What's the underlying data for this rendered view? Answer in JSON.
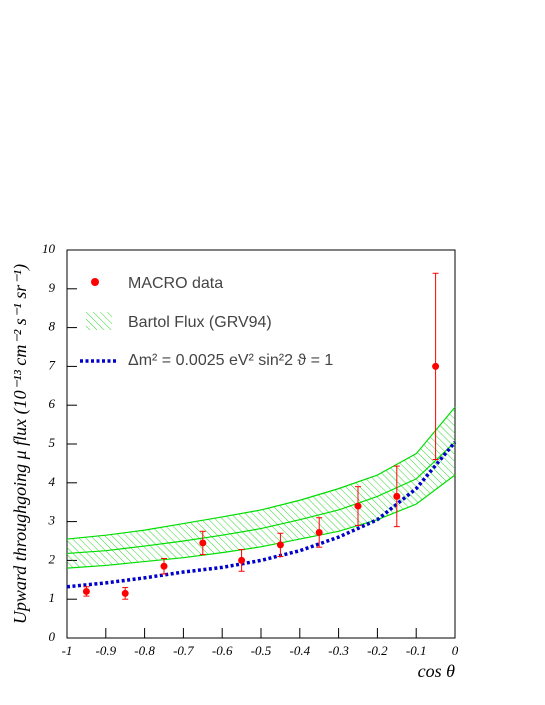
{
  "chart_data": {
    "type": "line",
    "x_label": "cos θ",
    "y_label": "Upward throughgoing μ flux (10⁻¹³ cm⁻² s⁻¹ sr⁻¹)",
    "xlim": [
      -1,
      0
    ],
    "ylim": [
      0,
      10
    ],
    "xticks": [
      -1,
      -0.9,
      -0.8,
      -0.7,
      -0.6,
      -0.5,
      -0.4,
      -0.3,
      -0.2,
      -0.1,
      0
    ],
    "yticks": [
      0,
      1,
      2,
      3,
      4,
      5,
      6,
      7,
      8,
      9,
      10
    ],
    "measurements": {
      "name": "MACRO data",
      "color": "#ff0000",
      "x": [
        -0.95,
        -0.85,
        -0.75,
        -0.65,
        -0.55,
        -0.45,
        -0.35,
        -0.25,
        -0.15,
        -0.05
      ],
      "values": [
        1.2,
        1.15,
        1.85,
        2.45,
        2.0,
        2.4,
        2.72,
        3.4,
        3.65,
        7.0
      ],
      "errors": [
        0.12,
        0.15,
        0.2,
        0.3,
        0.28,
        0.3,
        0.38,
        0.5,
        0.78,
        2.4
      ]
    },
    "band": {
      "name": "Bartol Flux (GRV94)",
      "color": "#00dd00",
      "x": [
        -1,
        -0.9,
        -0.8,
        -0.7,
        -0.6,
        -0.5,
        -0.4,
        -0.3,
        -0.2,
        -0.1,
        0
      ],
      "upper": [
        2.55,
        2.65,
        2.78,
        2.95,
        3.12,
        3.3,
        3.55,
        3.85,
        4.2,
        4.75,
        5.95
      ],
      "center": [
        2.18,
        2.25,
        2.37,
        2.5,
        2.65,
        2.82,
        3.05,
        3.3,
        3.65,
        4.1,
        5.05
      ],
      "lower": [
        1.8,
        1.87,
        1.97,
        2.07,
        2.2,
        2.35,
        2.55,
        2.75,
        3.05,
        3.45,
        4.2
      ]
    },
    "oscillation": {
      "name": "Δm² = 0.0025 eV² sin²2 ϑ = 1",
      "color": "#0000cc",
      "x": [
        -1,
        -0.9,
        -0.8,
        -0.7,
        -0.6,
        -0.5,
        -0.4,
        -0.3,
        -0.2,
        -0.1,
        0
      ],
      "values": [
        1.32,
        1.42,
        1.55,
        1.7,
        1.82,
        2.0,
        2.25,
        2.6,
        3.05,
        3.85,
        5.05
      ]
    }
  }
}
